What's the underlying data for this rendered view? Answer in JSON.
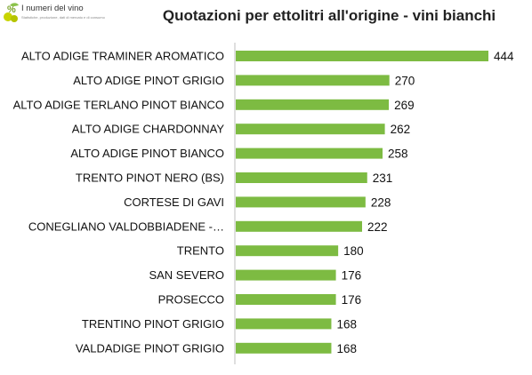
{
  "logo": {
    "title": "I numeri del vino",
    "subtitle": "Statistiche, produzione, dati di mercato e di consumo",
    "colors": {
      "leaf": "#8bc34a",
      "grape": "#c8d400"
    }
  },
  "chart_data": {
    "type": "bar",
    "orientation": "horizontal",
    "title": "Quotazioni per ettolitri all'origine - vini bianchi",
    "xlabel": "",
    "ylabel": "",
    "categories": [
      "ALTO ADIGE TRAMINER AROMATICO",
      "ALTO ADIGE PINOT GRIGIO",
      "ALTO ADIGE TERLANO PINOT BIANCO",
      "ALTO ADIGE CHARDONNAY",
      "ALTO ADIGE PINOT BIANCO",
      "TRENTO PINOT NERO (BS)",
      "CORTESE DI GAVI",
      "CONEGLIANO VALDOBBIADENE -…",
      "TRENTO",
      "SAN SEVERO",
      "PROSECCO",
      "TRENTINO PINOT GRIGIO",
      "VALDADIGE PINOT GRIGIO"
    ],
    "values": [
      444,
      270,
      269,
      262,
      258,
      231,
      228,
      222,
      180,
      176,
      176,
      168,
      168
    ],
    "xlim": [
      0,
      444
    ],
    "bar_color": "#7dbb42",
    "axis_color": "#bfbfbf",
    "grid": false,
    "legend": "none"
  }
}
